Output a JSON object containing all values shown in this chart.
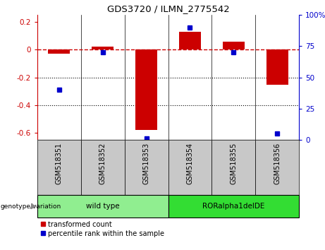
{
  "title": "GDS3720 / ILMN_2775542",
  "samples": [
    "GSM518351",
    "GSM518352",
    "GSM518353",
    "GSM518354",
    "GSM518355",
    "GSM518356"
  ],
  "red_bars": [
    -0.03,
    0.02,
    -0.58,
    0.13,
    0.06,
    -0.25
  ],
  "blue_dots_pct": [
    40,
    70,
    1,
    90,
    70,
    5
  ],
  "groups": [
    {
      "label": "wild type",
      "indices": [
        0,
        1,
        2
      ],
      "color": "#90EE90"
    },
    {
      "label": "RORalpha1delDE",
      "indices": [
        3,
        4,
        5
      ],
      "color": "#33DD33"
    }
  ],
  "ylim_left": [
    -0.65,
    0.25
  ],
  "ylim_right": [
    0,
    100
  ],
  "red_color": "#CC0000",
  "blue_color": "#0000CC",
  "bar_width": 0.5,
  "genotype_label": "genotype/variation",
  "legend_red": "transformed count",
  "legend_blue": "percentile rank within the sample",
  "hline_y": 0,
  "dotted_lines": [
    -0.2,
    -0.4
  ],
  "left_yticks": [
    -0.6,
    -0.4,
    -0.2,
    0.0,
    0.2
  ],
  "left_yticklabels": [
    "-0.6",
    "-0.4",
    "-0.2",
    "0",
    "0.2"
  ],
  "right_yticks": [
    0,
    25,
    50,
    75,
    100
  ],
  "right_yticklabels": [
    "0",
    "25",
    "50",
    "75",
    "100%"
  ]
}
